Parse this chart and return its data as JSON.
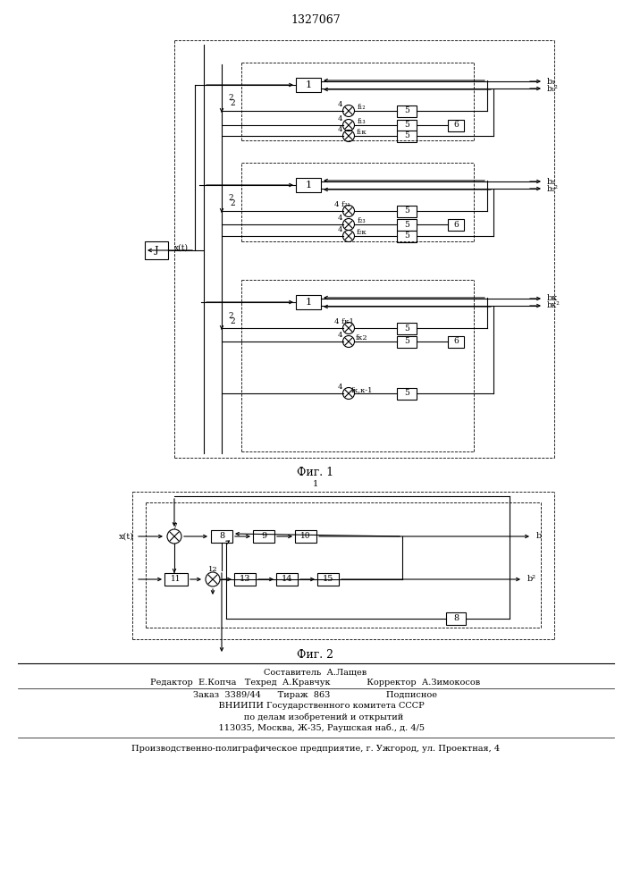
{
  "title": "1327067",
  "fig1_caption": "Фиг. 1",
  "fig2_caption": "Фиг. 2",
  "bg_color": "#ffffff",
  "footer_lines": [
    "Составитель  А.Лащев",
    "Редактор  Е.Копча   Техред  А.Кравчук             Корректор  А.Зимокосов",
    "Заказ  3389/44      Тираж  863                    Подписное",
    "    ВНИИПИ Государственного комитета СССР",
    "      по делам изобретений и открытий",
    "    113035, Москва, Ж-35, Раушская наб., д. 4/5",
    "Производственно-полиграфическое предприятие, г. Ужгород, ул. Проектная, 4"
  ]
}
